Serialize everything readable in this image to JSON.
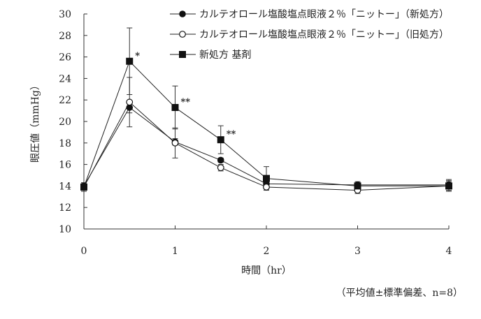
{
  "chart_data": {
    "type": "line",
    "xlabel": "時間（hr）",
    "ylabel": "眼圧値（mmHg）",
    "note": "（平均値±標準偏差、n=8）",
    "xlim": [
      0,
      4
    ],
    "ylim": [
      10,
      30
    ],
    "x_ticks": [
      0,
      1,
      2,
      3,
      4
    ],
    "y_ticks": [
      10,
      12,
      14,
      16,
      18,
      20,
      22,
      24,
      26,
      28,
      30
    ],
    "legend_position": "top-right",
    "grid": false,
    "series": [
      {
        "name": "カルテオロール塩酸塩点眼液２％「ニットー」（新処方）",
        "marker": "filled-circle",
        "x": [
          0,
          0.5,
          1,
          1.5,
          2,
          3,
          4
        ],
        "y": [
          14.0,
          21.3,
          18.1,
          16.4,
          14.2,
          14.1,
          14.1
        ],
        "sd": [
          0.3,
          0.5,
          0.3,
          0.2,
          0.3,
          0.3,
          0.5
        ]
      },
      {
        "name": "カルテオロール塩酸塩点眼液２％「ニットー」（旧処方）",
        "marker": "open-circle",
        "x": [
          0,
          0.5,
          1,
          1.5,
          2,
          3,
          4
        ],
        "y": [
          13.9,
          21.8,
          18.0,
          15.7,
          13.9,
          13.6,
          14.0
        ],
        "sd": [
          0.3,
          2.3,
          1.4,
          0.3,
          0.2,
          0.3,
          0.4
        ]
      },
      {
        "name": "新処方 基剤",
        "marker": "filled-square",
        "x": [
          0,
          0.5,
          1,
          1.5,
          2,
          3,
          4
        ],
        "y": [
          13.9,
          25.6,
          21.3,
          18.3,
          14.7,
          14.0,
          14.0
        ],
        "sd": [
          0.4,
          3.1,
          2.0,
          1.3,
          1.1,
          0.3,
          0.5
        ]
      }
    ],
    "annotations": [
      {
        "x": 0.5,
        "y": 25.6,
        "text": "*"
      },
      {
        "x": 1,
        "y": 21.3,
        "text": "**"
      },
      {
        "x": 1.5,
        "y": 18.3,
        "text": "**"
      }
    ]
  }
}
